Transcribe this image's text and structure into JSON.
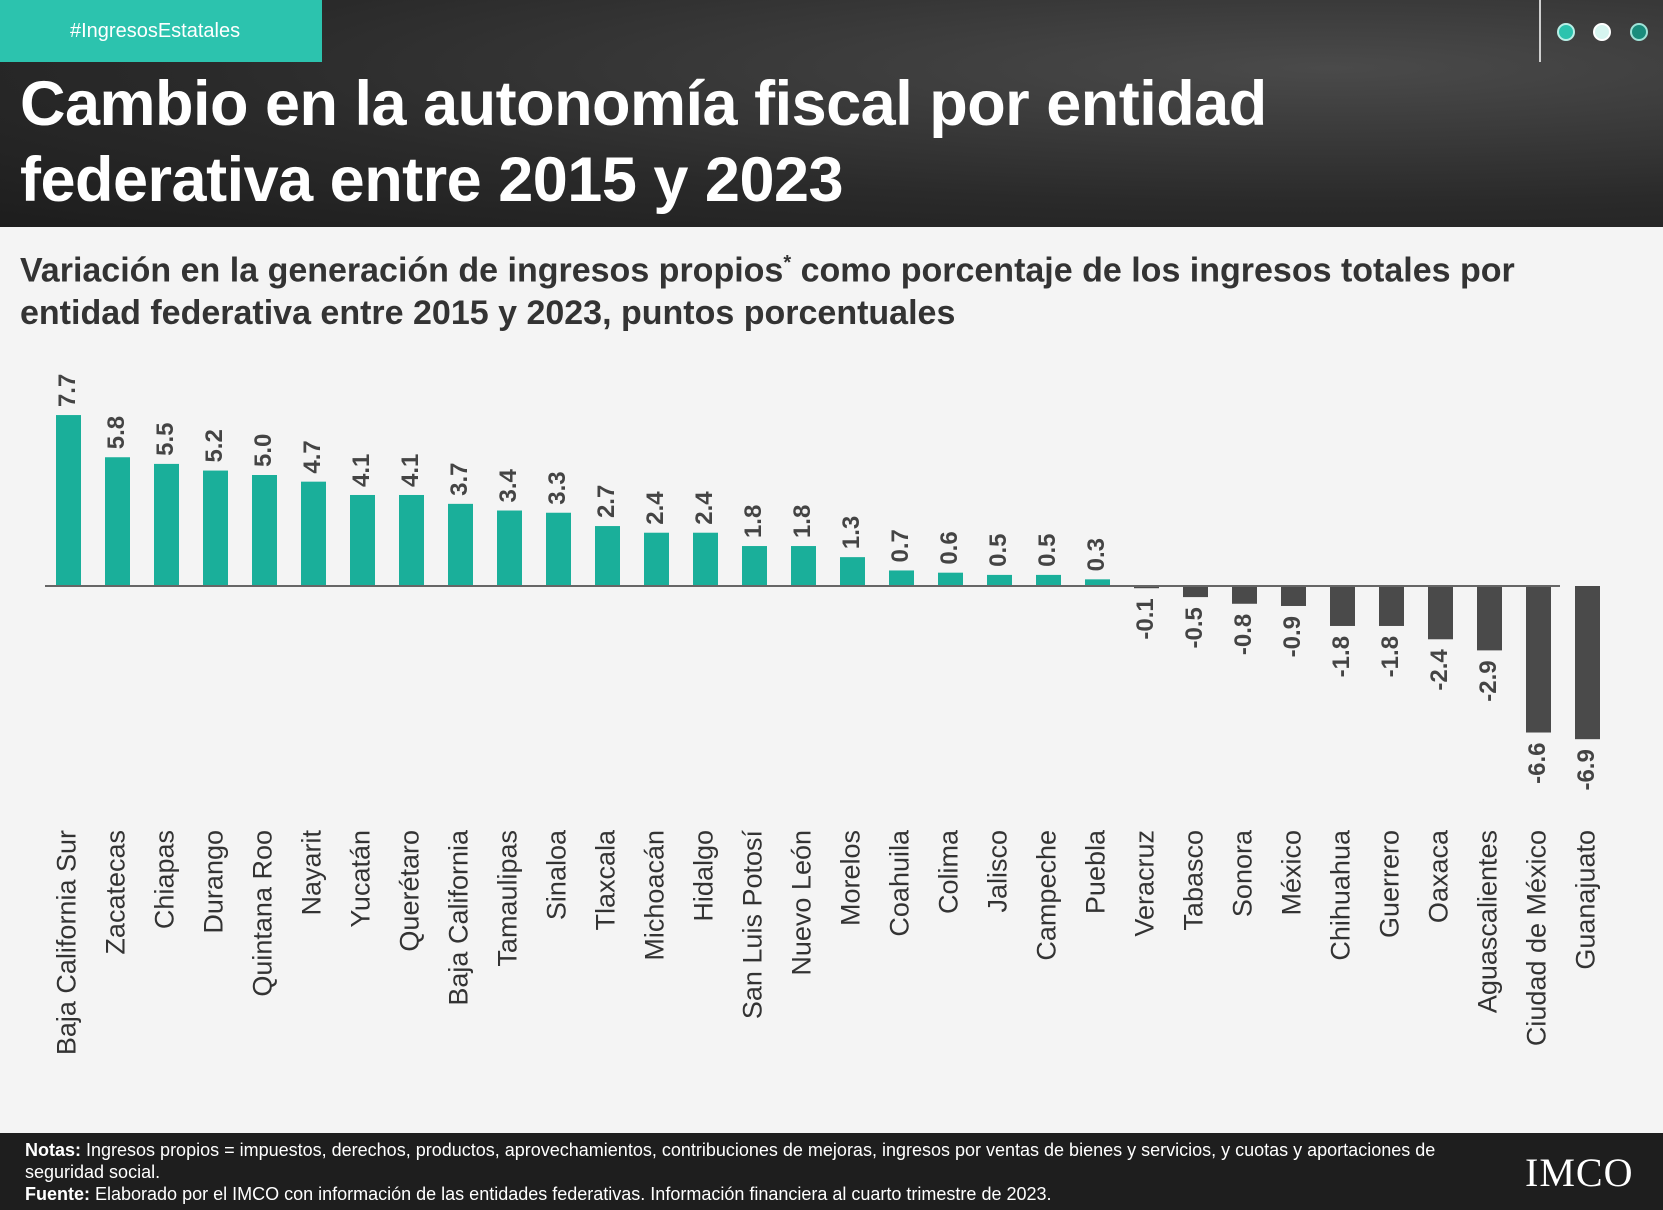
{
  "header": {
    "hashtag": "#IngresosEstatales",
    "title": "Cambio en la autonomía fiscal por entidad federativa entre 2015 y 2023"
  },
  "subtitle": {
    "text": "Variación en la generación de ingresos propios",
    "asterisk": "*",
    "text2": " como porcentaje de los ingresos totales por entidad federativa entre 2015 y 2023, puntos porcentuales"
  },
  "chart_data": {
    "type": "bar",
    "title": "Variación en la generación de ingresos propios* como porcentaje de los ingresos totales por entidad federativa entre 2015 y 2023, puntos porcentuales",
    "categories": [
      "Baja California Sur",
      "Zacatecas",
      "Chiapas",
      "Durango",
      "Quintana Roo",
      "Nayarit",
      "Yucatán",
      "Querétaro",
      "Baja California",
      "Tamaulipas",
      "Sinaloa",
      "Tlaxcala",
      "Michoacán",
      "Hidalgo",
      "San Luis Potosí",
      "Nuevo León",
      "Morelos",
      "Coahuila",
      "Colima",
      "Jalisco",
      "Campeche",
      "Puebla",
      "Veracruz",
      "Tabasco",
      "Sonora",
      "México",
      "Chihuahua",
      "Guerrero",
      "Oaxaca",
      "Aguascalientes",
      "Ciudad de México",
      "Guanajuato"
    ],
    "values": [
      7.7,
      5.8,
      5.5,
      5.2,
      5.0,
      4.7,
      4.1,
      4.1,
      3.7,
      3.4,
      3.3,
      2.7,
      2.4,
      2.4,
      1.8,
      1.8,
      1.3,
      0.7,
      0.6,
      0.5,
      0.5,
      0.3,
      -0.1,
      -0.5,
      -0.8,
      -0.9,
      -1.8,
      -1.8,
      -2.4,
      -2.9,
      -6.6,
      -6.9
    ],
    "labels": [
      "7.7",
      "5.8",
      "5.5",
      "5.2",
      "5.0",
      "4.7",
      "4.1",
      "4.1",
      "3.7",
      "3.4",
      "3.3",
      "2.7",
      "2.4",
      "2.4",
      "1.8",
      "1.8",
      "1.3",
      "0.7",
      "0.6",
      "0.5",
      "0.5",
      "0.3",
      "-0.1",
      "-0.5",
      "-0.8",
      "-0.9",
      "-1.8",
      "-1.8",
      "-2.4",
      "-2.9",
      "-6.6",
      "-6.9"
    ],
    "colors": {
      "positive": "#1aaf9a",
      "negative": "#4a4a4a"
    },
    "xlabel": "",
    "ylabel": "",
    "ylim": [
      -6.9,
      7.7
    ],
    "grid": false
  },
  "footer": {
    "notes_label": "Notas:",
    "notes_text": " Ingresos propios = impuestos, derechos, productos, aprovechamientos, contribuciones de mejoras, ingresos por ventas de bienes y servicios, y cuotas y aportaciones de seguridad social.",
    "source_label": "Fuente:",
    "source_text": " Elaborado por el IMCO con información de las entidades federativas. Información financiera al cuarto trimestre de 2023.",
    "logo": "IMCO"
  }
}
